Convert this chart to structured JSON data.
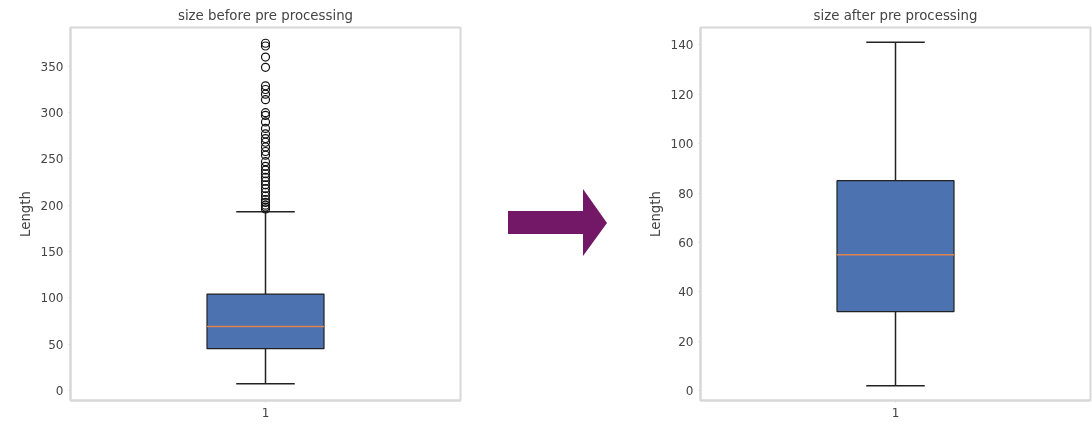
{
  "chart_data": [
    {
      "type": "box",
      "title": "size before pre processing",
      "ylabel": "Length",
      "categories": [
        "1"
      ],
      "ylim": [
        -11,
        392
      ],
      "yticks": [
        0,
        50,
        100,
        150,
        200,
        250,
        300,
        350
      ],
      "grid": false,
      "series": [
        {
          "color": "#4c72b0",
          "boxes": [
            {
              "low": 7,
              "q1": 45,
              "median": 69,
              "q3": 104,
              "high": 193,
              "outliers": [
                196,
                198,
                200,
                203,
                206,
                210,
                214,
                218,
                222,
                226,
                230,
                234,
                238,
                242,
                247,
                254,
                258,
                263,
                268,
                272,
                277,
                283,
                290,
                297,
                300,
                314,
                320,
                325,
                329,
                349,
                360,
                372,
                375
              ]
            }
          ]
        }
      ]
    },
    {
      "type": "box",
      "title": "size after pre processing",
      "ylabel": "Length",
      "categories": [
        "1"
      ],
      "ylim": [
        -4,
        147
      ],
      "yticks": [
        0,
        20,
        40,
        60,
        80,
        100,
        120,
        140
      ],
      "grid": false,
      "series": [
        {
          "color": "#4c72b0",
          "boxes": [
            {
              "low": 2,
              "q1": 32,
              "median": 55,
              "q3": 85,
              "high": 141
            }
          ]
        }
      ]
    }
  ]
}
